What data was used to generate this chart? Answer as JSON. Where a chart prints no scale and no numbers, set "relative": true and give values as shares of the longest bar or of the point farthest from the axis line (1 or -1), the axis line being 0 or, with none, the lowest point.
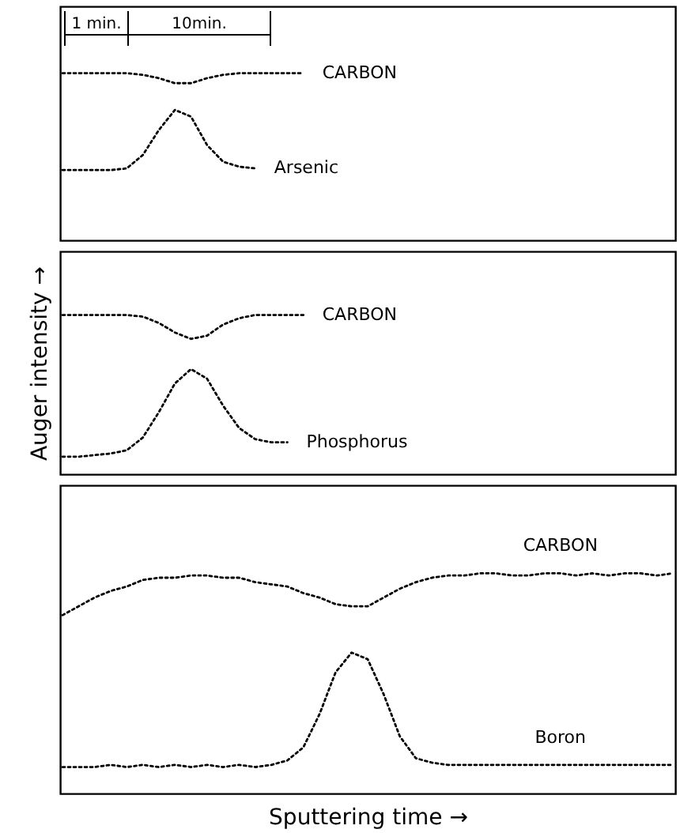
{
  "chart_data": [
    {
      "type": "line",
      "relative": true,
      "line_style": "dotted",
      "annotations": [
        "1 min.",
        "10min."
      ],
      "categories": [
        null,
        null,
        null,
        null,
        null,
        null,
        null,
        null,
        null,
        null,
        null,
        null,
        null,
        null,
        null,
        null,
        null,
        null,
        null,
        null,
        null,
        null,
        null,
        null,
        null,
        null,
        null,
        null,
        null,
        null,
        null,
        null,
        null,
        null,
        null,
        null,
        null,
        null,
        null
      ],
      "series": [
        {
          "name": "CARBON",
          "color": "#000000",
          "values": [
            1.0,
            1.0,
            1.0,
            1.0,
            1.0,
            0.99,
            0.97,
            0.94,
            0.94,
            0.97,
            0.99,
            1.0,
            1.0,
            1.0,
            1.0,
            1.0,
            null,
            null,
            null,
            null,
            null,
            null,
            null,
            null,
            null,
            null,
            null,
            null,
            null,
            null,
            null,
            null,
            null,
            null,
            null,
            null,
            null,
            null,
            null
          ]
        },
        {
          "name": "Arsenic",
          "color": "#000000",
          "values": [
            0.42,
            0.42,
            0.42,
            0.42,
            0.43,
            0.51,
            0.66,
            0.78,
            0.74,
            0.57,
            0.47,
            0.44,
            0.43,
            null,
            null,
            null,
            null,
            null,
            null,
            null,
            null,
            null,
            null,
            null,
            null,
            null,
            null,
            null,
            null,
            null,
            null,
            null,
            null,
            null,
            null,
            null,
            null,
            null,
            null
          ]
        }
      ]
    },
    {
      "type": "line",
      "relative": true,
      "line_style": "dotted",
      "ylabel": "Auger intensity →",
      "categories": [
        null,
        null,
        null,
        null,
        null,
        null,
        null,
        null,
        null,
        null,
        null,
        null,
        null,
        null,
        null,
        null,
        null,
        null,
        null,
        null,
        null,
        null,
        null,
        null,
        null,
        null,
        null,
        null,
        null,
        null,
        null,
        null,
        null,
        null,
        null,
        null,
        null,
        null,
        null
      ],
      "series": [
        {
          "name": "CARBON",
          "color": "#000000",
          "values": [
            1.0,
            1.0,
            1.0,
            1.0,
            1.0,
            0.99,
            0.95,
            0.89,
            0.85,
            0.87,
            0.94,
            0.98,
            1.0,
            1.0,
            1.0,
            1.0,
            null,
            null,
            null,
            null,
            null,
            null,
            null,
            null,
            null,
            null,
            null,
            null,
            null,
            null,
            null,
            null,
            null,
            null,
            null,
            null,
            null,
            null,
            null
          ]
        },
        {
          "name": "Phosphorus",
          "color": "#000000",
          "values": [
            0.11,
            0.11,
            0.12,
            0.13,
            0.15,
            0.23,
            0.39,
            0.57,
            0.66,
            0.6,
            0.43,
            0.29,
            0.22,
            0.2,
            0.2,
            null,
            null,
            null,
            null,
            null,
            null,
            null,
            null,
            null,
            null,
            null,
            null,
            null,
            null,
            null,
            null,
            null,
            null,
            null,
            null,
            null,
            null,
            null,
            null
          ]
        }
      ]
    },
    {
      "type": "line",
      "relative": true,
      "line_style": "dotted",
      "xlabel": "Sputtering time →",
      "categories": [
        null,
        null,
        null,
        null,
        null,
        null,
        null,
        null,
        null,
        null,
        null,
        null,
        null,
        null,
        null,
        null,
        null,
        null,
        null,
        null,
        null,
        null,
        null,
        null,
        null,
        null,
        null,
        null,
        null,
        null,
        null,
        null,
        null,
        null,
        null,
        null,
        null,
        null,
        null
      ],
      "series": [
        {
          "name": "CARBON",
          "color": "#000000",
          "values": [
            0.81,
            0.85,
            0.89,
            0.92,
            0.94,
            0.97,
            0.98,
            0.98,
            0.99,
            0.99,
            0.98,
            0.98,
            0.96,
            0.95,
            0.94,
            0.91,
            0.89,
            0.86,
            0.85,
            0.85,
            0.89,
            0.93,
            0.96,
            0.98,
            0.99,
            0.99,
            1.0,
            1.0,
            0.99,
            0.99,
            1.0,
            1.0,
            0.99,
            1.0,
            0.99,
            1.0,
            1.0,
            0.99,
            1.0
          ]
        },
        {
          "name": "Boron",
          "color": "#000000",
          "values": [
            0.12,
            0.12,
            0.12,
            0.13,
            0.12,
            0.13,
            0.12,
            0.13,
            0.12,
            0.13,
            0.12,
            0.13,
            0.12,
            0.13,
            0.15,
            0.21,
            0.36,
            0.55,
            0.64,
            0.61,
            0.45,
            0.26,
            0.16,
            0.14,
            0.13,
            0.13,
            0.13,
            0.13,
            0.13,
            0.13,
            0.13,
            0.13,
            0.13,
            0.13,
            0.13,
            0.13,
            0.13,
            0.13,
            0.13
          ]
        }
      ]
    }
  ]
}
